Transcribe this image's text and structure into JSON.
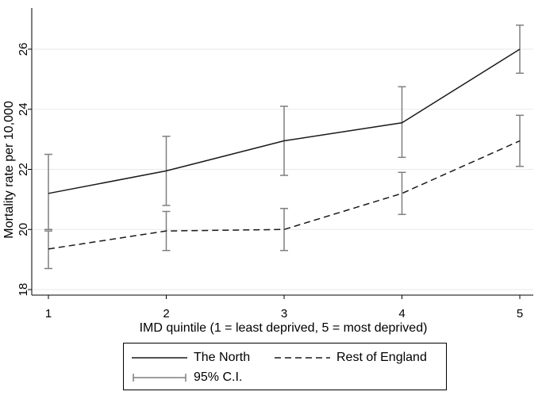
{
  "chart_data": {
    "type": "line",
    "title": "",
    "xlabel": "IMD quintile (1 = least deprived, 5 = most deprived)",
    "ylabel": "Mortality rate per 10,000",
    "x": [
      1,
      2,
      3,
      4,
      5
    ],
    "xticks": [
      "1",
      "2",
      "3",
      "4",
      "5"
    ],
    "yticks": [
      "18",
      "20",
      "22",
      "24",
      "26"
    ],
    "ylim": [
      18,
      27
    ],
    "grid": true,
    "series": [
      {
        "name": "The North",
        "style": "solid",
        "values": [
          21.2,
          21.95,
          22.95,
          23.55,
          26.0
        ],
        "ci_low": [
          20.0,
          20.8,
          21.8,
          22.4,
          25.2
        ],
        "ci_high": [
          22.5,
          23.1,
          24.1,
          24.75,
          26.8
        ]
      },
      {
        "name": "Rest of England",
        "style": "dashed",
        "values": [
          19.35,
          19.95,
          20.0,
          21.2,
          22.95
        ],
        "ci_low": [
          18.7,
          19.3,
          19.3,
          20.5,
          22.1
        ],
        "ci_high": [
          19.95,
          20.6,
          20.7,
          21.9,
          23.8
        ]
      }
    ],
    "legend": {
      "placement": "bottom",
      "ci_label": "95% C.I."
    },
    "colors": {
      "line": "#1a1a1a",
      "ci": "#7f7f7f",
      "grid": "#eaeaea"
    }
  }
}
